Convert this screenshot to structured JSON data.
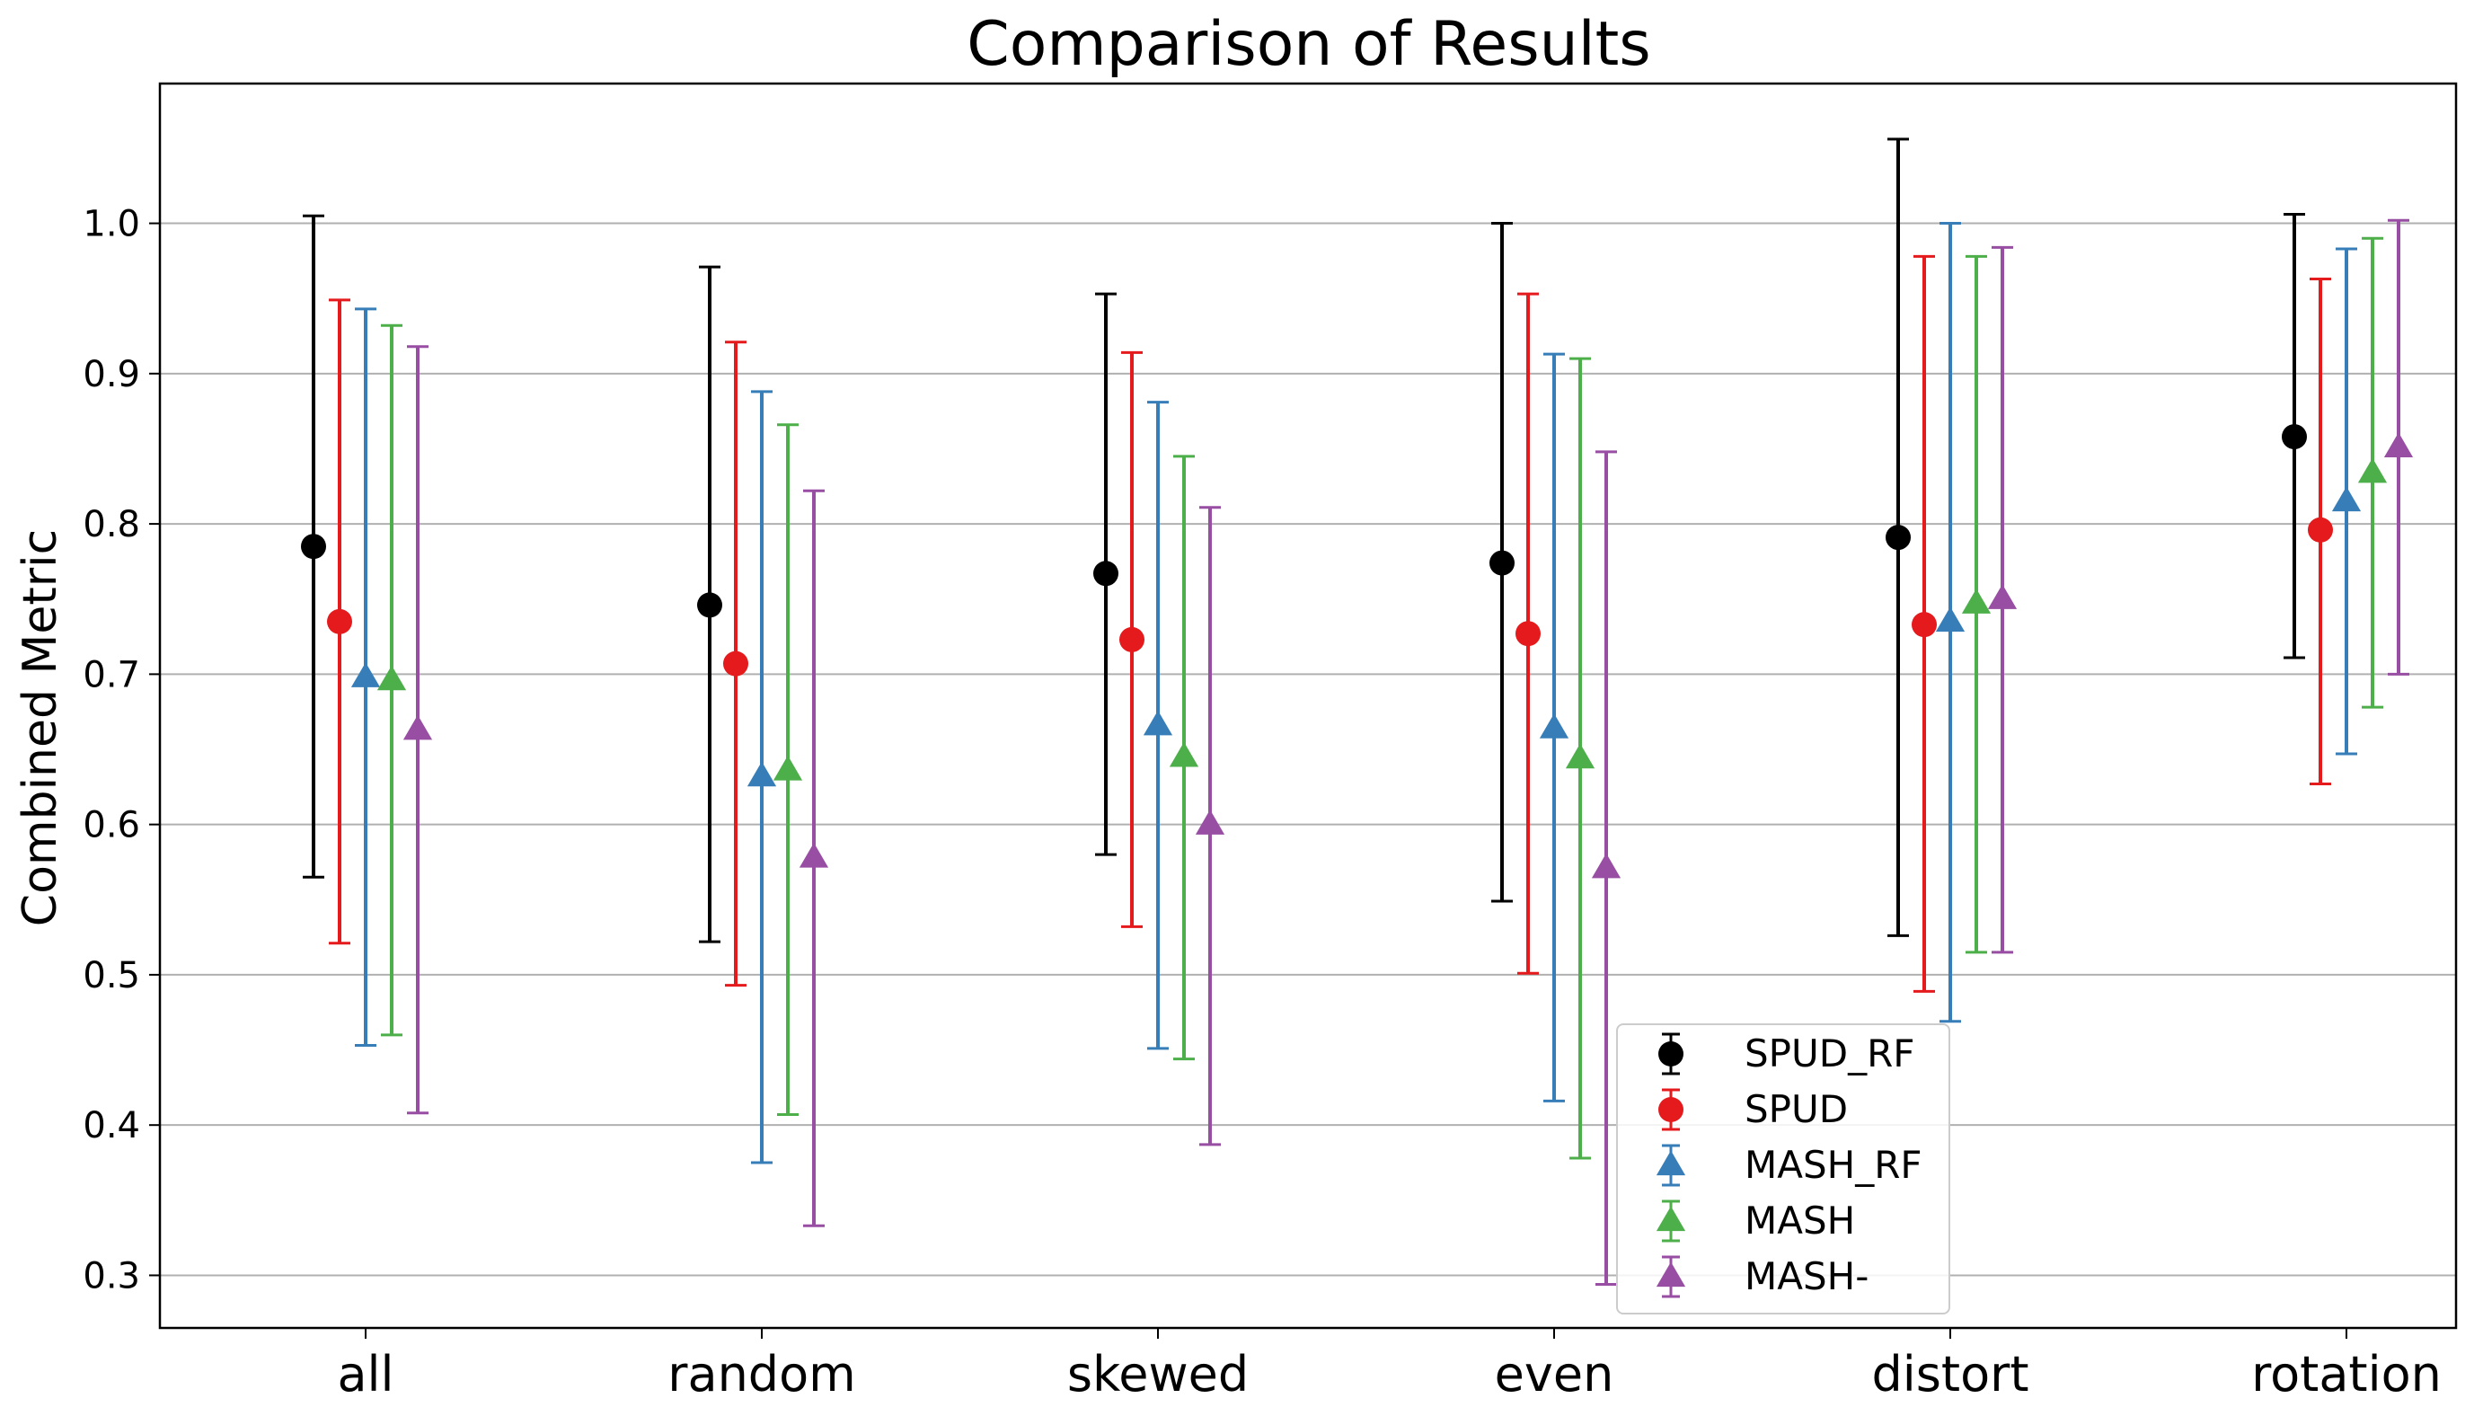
{
  "chart_data": {
    "type": "scatter",
    "title": "Comparison of Results",
    "xlabel": "",
    "ylabel": "Combined Metric",
    "categories": [
      "all",
      "random",
      "skewed",
      "even",
      "distort",
      "rotation"
    ],
    "ylim": [
      0.265,
      1.093
    ],
    "yticks": [
      0.3,
      0.4,
      0.5,
      0.6,
      0.7,
      0.8,
      0.9,
      1.0
    ],
    "ytick_labels": [
      "0.3",
      "0.4",
      "0.5",
      "0.6",
      "0.7",
      "0.8",
      "0.9",
      "1.0"
    ],
    "grid": "horizontal",
    "legend_position": "lower-center",
    "series": [
      {
        "name": "SPUD_RF",
        "color": "#000000",
        "marker": "circle",
        "values": [
          0.785,
          0.746,
          0.767,
          0.774,
          0.791,
          0.858
        ],
        "err_low": [
          0.565,
          0.522,
          0.58,
          0.549,
          0.526,
          0.711
        ],
        "err_high": [
          1.005,
          0.971,
          0.953,
          1.0,
          1.056,
          1.006
        ]
      },
      {
        "name": "SPUD",
        "color": "#e41a1c",
        "marker": "circle",
        "values": [
          0.735,
          0.707,
          0.723,
          0.727,
          0.733,
          0.796
        ],
        "err_low": [
          0.521,
          0.493,
          0.532,
          0.501,
          0.489,
          0.627
        ],
        "err_high": [
          0.949,
          0.921,
          0.914,
          0.953,
          0.978,
          0.963
        ]
      },
      {
        "name": "MASH_RF",
        "color": "#377eb8",
        "marker": "triangle",
        "values": [
          0.698,
          0.632,
          0.666,
          0.664,
          0.735,
          0.815
        ],
        "err_low": [
          0.453,
          0.375,
          0.451,
          0.416,
          0.469,
          0.647
        ],
        "err_high": [
          0.943,
          0.888,
          0.881,
          0.913,
          1.0,
          0.983
        ]
      },
      {
        "name": "MASH",
        "color": "#4daf4a",
        "marker": "triangle",
        "values": [
          0.696,
          0.636,
          0.645,
          0.644,
          0.747,
          0.834
        ],
        "err_low": [
          0.46,
          0.407,
          0.444,
          0.378,
          0.515,
          0.678
        ],
        "err_high": [
          0.932,
          0.866,
          0.845,
          0.91,
          0.978,
          0.99
        ]
      },
      {
        "name": "MASH-",
        "color": "#984ea3",
        "marker": "triangle",
        "values": [
          0.663,
          0.578,
          0.6,
          0.571,
          0.75,
          0.851
        ],
        "err_low": [
          0.408,
          0.333,
          0.387,
          0.294,
          0.515,
          0.7
        ],
        "err_high": [
          0.918,
          0.822,
          0.811,
          0.848,
          0.984,
          1.002
        ]
      }
    ]
  }
}
